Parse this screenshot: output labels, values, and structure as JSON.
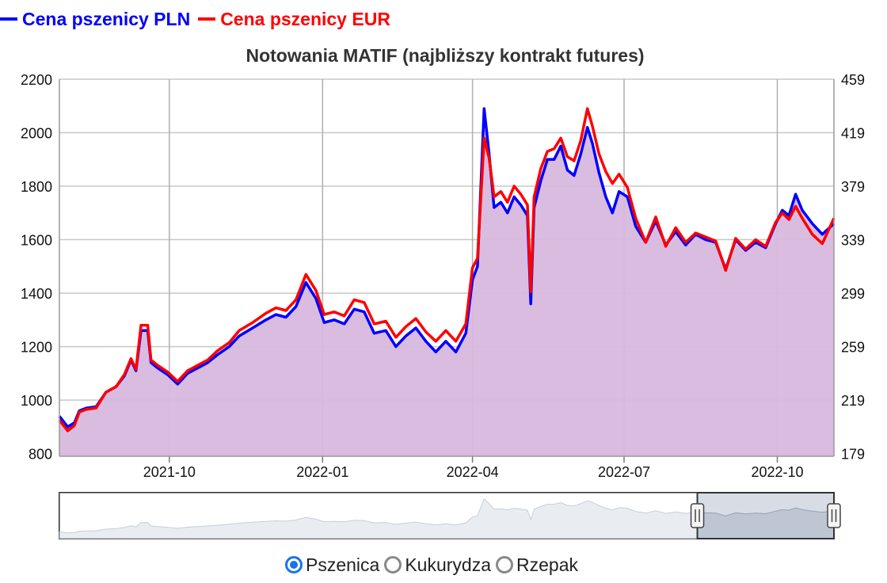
{
  "legend": [
    {
      "label": "Cena pszenicy PLN",
      "color": "#0000ff"
    },
    {
      "label": "Cena pszenicy EUR",
      "color": "#ff0000"
    }
  ],
  "radios": {
    "options": [
      {
        "label": "Pszenica",
        "checked": true
      },
      {
        "label": "Kukurydza",
        "checked": false
      },
      {
        "label": "Rzepak",
        "checked": false
      }
    ]
  },
  "chart_data": {
    "type": "area",
    "title": "Notowania MATIF (najbliższy kontrakt futures)",
    "x_ticks": [
      "2021-10",
      "2022-01",
      "2022-04",
      "2022-07",
      "2022-10"
    ],
    "x_range": [
      "2021-07-27",
      "2022-11-04"
    ],
    "y_left": {
      "ticks": [
        800,
        1000,
        1200,
        1400,
        1600,
        1800,
        2000,
        2200
      ],
      "range": [
        790,
        2200
      ]
    },
    "y_right": {
      "ticks": [
        179,
        219,
        259,
        299,
        339,
        379,
        419,
        459
      ],
      "range": [
        177,
        459
      ]
    },
    "grid": true,
    "fill_color": "#d8b8de",
    "series": [
      {
        "name": "Cena pszenicy PLN",
        "color": "#0000ff",
        "axis": "left",
        "points": [
          [
            "2021-07-27",
            940
          ],
          [
            "2021-08-01",
            900
          ],
          [
            "2021-08-05",
            915
          ],
          [
            "2021-08-08",
            960
          ],
          [
            "2021-08-12",
            970
          ],
          [
            "2021-08-18",
            975
          ],
          [
            "2021-08-24",
            1030
          ],
          [
            "2021-08-30",
            1050
          ],
          [
            "2021-09-04",
            1090
          ],
          [
            "2021-09-08",
            1150
          ],
          [
            "2021-09-11",
            1110
          ],
          [
            "2021-09-14",
            1260
          ],
          [
            "2021-09-18",
            1260
          ],
          [
            "2021-09-20",
            1140
          ],
          [
            "2021-09-24",
            1120
          ],
          [
            "2021-09-30",
            1095
          ],
          [
            "2021-10-06",
            1060
          ],
          [
            "2021-10-12",
            1100
          ],
          [
            "2021-10-18",
            1120
          ],
          [
            "2021-10-24",
            1140
          ],
          [
            "2021-10-30",
            1170
          ],
          [
            "2021-11-06",
            1200
          ],
          [
            "2021-11-12",
            1240
          ],
          [
            "2021-11-20",
            1270
          ],
          [
            "2021-11-28",
            1300
          ],
          [
            "2021-12-04",
            1320
          ],
          [
            "2021-12-10",
            1310
          ],
          [
            "2021-12-16",
            1350
          ],
          [
            "2021-12-22",
            1440
          ],
          [
            "2021-12-28",
            1380
          ],
          [
            "2022-01-02",
            1290
          ],
          [
            "2022-01-08",
            1300
          ],
          [
            "2022-01-14",
            1285
          ],
          [
            "2022-01-20",
            1340
          ],
          [
            "2022-01-26",
            1330
          ],
          [
            "2022-02-01",
            1250
          ],
          [
            "2022-02-08",
            1260
          ],
          [
            "2022-02-14",
            1200
          ],
          [
            "2022-02-20",
            1240
          ],
          [
            "2022-02-26",
            1270
          ],
          [
            "2022-03-04",
            1220
          ],
          [
            "2022-03-10",
            1180
          ],
          [
            "2022-03-16",
            1220
          ],
          [
            "2022-03-22",
            1180
          ],
          [
            "2022-03-28",
            1250
          ],
          [
            "2022-04-01",
            1450
          ],
          [
            "2022-04-04",
            1500
          ],
          [
            "2022-04-08",
            2090
          ],
          [
            "2022-04-11",
            1920
          ],
          [
            "2022-04-14",
            1720
          ],
          [
            "2022-04-18",
            1740
          ],
          [
            "2022-04-22",
            1700
          ],
          [
            "2022-04-26",
            1760
          ],
          [
            "2022-04-30",
            1730
          ],
          [
            "2022-05-04",
            1690
          ],
          [
            "2022-05-06",
            1360
          ],
          [
            "2022-05-08",
            1720
          ],
          [
            "2022-05-12",
            1820
          ],
          [
            "2022-05-16",
            1900
          ],
          [
            "2022-05-20",
            1900
          ],
          [
            "2022-05-24",
            1950
          ],
          [
            "2022-05-28",
            1860
          ],
          [
            "2022-06-01",
            1840
          ],
          [
            "2022-06-05",
            1920
          ],
          [
            "2022-06-09",
            2020
          ],
          [
            "2022-06-12",
            1960
          ],
          [
            "2022-06-16",
            1850
          ],
          [
            "2022-06-20",
            1760
          ],
          [
            "2022-06-24",
            1700
          ],
          [
            "2022-06-28",
            1780
          ],
          [
            "2022-07-03",
            1760
          ],
          [
            "2022-07-08",
            1650
          ],
          [
            "2022-07-14",
            1590
          ],
          [
            "2022-07-20",
            1670
          ],
          [
            "2022-07-26",
            1580
          ],
          [
            "2022-08-01",
            1630
          ],
          [
            "2022-08-07",
            1580
          ],
          [
            "2022-08-13",
            1620
          ],
          [
            "2022-08-19",
            1600
          ],
          [
            "2022-08-25",
            1590
          ],
          [
            "2022-08-31",
            1490
          ],
          [
            "2022-09-06",
            1600
          ],
          [
            "2022-09-12",
            1560
          ],
          [
            "2022-09-18",
            1590
          ],
          [
            "2022-09-24",
            1570
          ],
          [
            "2022-09-30",
            1660
          ],
          [
            "2022-10-04",
            1710
          ],
          [
            "2022-10-08",
            1690
          ],
          [
            "2022-10-12",
            1770
          ],
          [
            "2022-10-16",
            1710
          ],
          [
            "2022-10-22",
            1660
          ],
          [
            "2022-10-28",
            1620
          ],
          [
            "2022-11-04",
            1660
          ]
        ]
      },
      {
        "name": "Cena pszenicy EUR",
        "color": "#ff0000",
        "axis": "right",
        "points": [
          [
            "2021-07-27",
            204
          ],
          [
            "2021-08-01",
            196
          ],
          [
            "2021-08-05",
            200
          ],
          [
            "2021-08-08",
            210
          ],
          [
            "2021-08-12",
            212
          ],
          [
            "2021-08-18",
            213
          ],
          [
            "2021-08-24",
            225
          ],
          [
            "2021-08-30",
            229
          ],
          [
            "2021-09-04",
            238
          ],
          [
            "2021-09-08",
            250
          ],
          [
            "2021-09-11",
            242
          ],
          [
            "2021-09-14",
            275
          ],
          [
            "2021-09-18",
            275
          ],
          [
            "2021-09-20",
            249
          ],
          [
            "2021-09-24",
            245
          ],
          [
            "2021-09-30",
            240
          ],
          [
            "2021-10-06",
            233
          ],
          [
            "2021-10-12",
            241
          ],
          [
            "2021-10-18",
            245
          ],
          [
            "2021-10-24",
            249
          ],
          [
            "2021-10-30",
            256
          ],
          [
            "2021-11-06",
            262
          ],
          [
            "2021-11-12",
            271
          ],
          [
            "2021-11-20",
            277
          ],
          [
            "2021-11-28",
            284
          ],
          [
            "2021-12-04",
            288
          ],
          [
            "2021-12-10",
            286
          ],
          [
            "2021-12-16",
            294
          ],
          [
            "2021-12-22",
            313
          ],
          [
            "2021-12-28",
            301
          ],
          [
            "2022-01-02",
            283
          ],
          [
            "2022-01-08",
            285
          ],
          [
            "2022-01-14",
            282
          ],
          [
            "2022-01-20",
            294
          ],
          [
            "2022-01-26",
            292
          ],
          [
            "2022-02-01",
            276
          ],
          [
            "2022-02-08",
            278
          ],
          [
            "2022-02-14",
            266
          ],
          [
            "2022-02-20",
            274
          ],
          [
            "2022-02-26",
            280
          ],
          [
            "2022-03-04",
            270
          ],
          [
            "2022-03-10",
            263
          ],
          [
            "2022-03-16",
            271
          ],
          [
            "2022-03-22",
            263
          ],
          [
            "2022-03-28",
            276
          ],
          [
            "2022-04-01",
            318
          ],
          [
            "2022-04-04",
            325
          ],
          [
            "2022-04-08",
            415
          ],
          [
            "2022-04-11",
            400
          ],
          [
            "2022-04-14",
            371
          ],
          [
            "2022-04-18",
            375
          ],
          [
            "2022-04-22",
            367
          ],
          [
            "2022-04-26",
            379
          ],
          [
            "2022-04-30",
            373
          ],
          [
            "2022-05-04",
            365
          ],
          [
            "2022-05-06",
            300
          ],
          [
            "2022-05-08",
            371
          ],
          [
            "2022-05-12",
            392
          ],
          [
            "2022-05-16",
            405
          ],
          [
            "2022-05-20",
            407
          ],
          [
            "2022-05-24",
            415
          ],
          [
            "2022-05-28",
            401
          ],
          [
            "2022-06-01",
            398
          ],
          [
            "2022-06-05",
            413
          ],
          [
            "2022-06-09",
            437
          ],
          [
            "2022-06-12",
            424
          ],
          [
            "2022-06-16",
            403
          ],
          [
            "2022-06-20",
            390
          ],
          [
            "2022-06-24",
            381
          ],
          [
            "2022-06-28",
            388
          ],
          [
            "2022-07-03",
            378
          ],
          [
            "2022-07-08",
            355
          ],
          [
            "2022-07-14",
            337
          ],
          [
            "2022-07-20",
            356
          ],
          [
            "2022-07-26",
            334
          ],
          [
            "2022-08-01",
            348
          ],
          [
            "2022-08-07",
            337
          ],
          [
            "2022-08-13",
            344
          ],
          [
            "2022-08-19",
            341
          ],
          [
            "2022-08-25",
            338
          ],
          [
            "2022-08-31",
            316
          ],
          [
            "2022-09-06",
            340
          ],
          [
            "2022-09-12",
            332
          ],
          [
            "2022-09-18",
            339
          ],
          [
            "2022-09-24",
            334
          ],
          [
            "2022-09-30",
            352
          ],
          [
            "2022-10-04",
            359
          ],
          [
            "2022-10-08",
            354
          ],
          [
            "2022-10-12",
            364
          ],
          [
            "2022-10-16",
            355
          ],
          [
            "2022-10-22",
            343
          ],
          [
            "2022-10-28",
            336
          ],
          [
            "2022-11-04",
            355
          ]
        ]
      }
    ],
    "navigator": {
      "selected_range": [
        "2022-08-14",
        "2022-11-04"
      ],
      "fill_color": "#b8c2d2"
    }
  }
}
